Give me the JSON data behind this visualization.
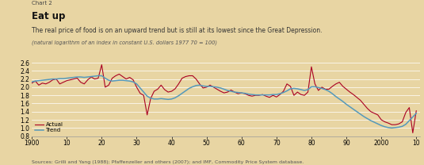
{
  "chart_label": "Chart 2",
  "title": "Eat up",
  "subtitle": "The real price of food is on an upward trend but is still at its lowest since the Great Depression.",
  "note": "(natural logarithm of an index in constant U.S. dollars 1977 70 = 100)",
  "source": "Sources: Grilli and Yang (1988); Pfaffenzeller and others (2007); and IMF, Commodity Price System database.",
  "background_color": "#e8d5a3",
  "actual_color": "#aa0022",
  "trend_color": "#5599bb",
  "ylim": [
    0.8,
    2.6
  ],
  "yticks": [
    0.8,
    1.0,
    1.2,
    1.4,
    1.6,
    1.8,
    2.0,
    2.2,
    2.4,
    2.6
  ],
  "xticks": [
    1900,
    1910,
    1920,
    1930,
    1940,
    1950,
    1960,
    1970,
    1980,
    1990,
    2000,
    2010
  ],
  "xticklabels": [
    "1900",
    "10",
    "20",
    "30",
    "40",
    "50",
    "60",
    "70",
    "80",
    "90",
    "2000",
    "10"
  ],
  "actual_x": [
    1900,
    1901,
    1902,
    1903,
    1904,
    1905,
    1906,
    1907,
    1908,
    1909,
    1910,
    1911,
    1912,
    1913,
    1914,
    1915,
    1916,
    1917,
    1918,
    1919,
    1920,
    1921,
    1922,
    1923,
    1924,
    1925,
    1926,
    1927,
    1928,
    1929,
    1930,
    1931,
    1932,
    1933,
    1934,
    1935,
    1936,
    1937,
    1938,
    1939,
    1940,
    1941,
    1942,
    1943,
    1944,
    1945,
    1946,
    1947,
    1948,
    1949,
    1950,
    1951,
    1952,
    1953,
    1954,
    1955,
    1956,
    1957,
    1958,
    1959,
    1960,
    1961,
    1962,
    1963,
    1964,
    1965,
    1966,
    1967,
    1968,
    1969,
    1970,
    1971,
    1972,
    1973,
    1974,
    1975,
    1976,
    1977,
    1978,
    1979,
    1980,
    1981,
    1982,
    1983,
    1984,
    1985,
    1986,
    1987,
    1988,
    1989,
    1990,
    1991,
    1992,
    1993,
    1994,
    1995,
    1996,
    1997,
    1998,
    1999,
    2000,
    2001,
    2002,
    2003,
    2004,
    2005,
    2006,
    2007,
    2008,
    2009,
    2010
  ],
  "actual_y": [
    2.1,
    2.15,
    2.05,
    2.1,
    2.08,
    2.12,
    2.18,
    2.2,
    2.08,
    2.12,
    2.16,
    2.18,
    2.2,
    2.22,
    2.12,
    2.08,
    2.18,
    2.25,
    2.2,
    2.22,
    2.55,
    2.0,
    2.05,
    2.22,
    2.28,
    2.32,
    2.26,
    2.2,
    2.24,
    2.18,
    2.0,
    1.85,
    1.8,
    1.32,
    1.72,
    1.9,
    1.95,
    2.05,
    1.94,
    1.88,
    1.9,
    1.96,
    2.08,
    2.22,
    2.26,
    2.28,
    2.28,
    2.2,
    2.08,
    1.98,
    2.0,
    2.05,
    2.0,
    1.95,
    1.9,
    1.86,
    1.88,
    1.93,
    1.88,
    1.84,
    1.86,
    1.84,
    1.8,
    1.78,
    1.8,
    1.8,
    1.82,
    1.78,
    1.75,
    1.8,
    1.76,
    1.82,
    1.9,
    2.08,
    2.02,
    1.8,
    1.88,
    1.82,
    1.8,
    1.88,
    2.5,
    2.08,
    1.92,
    2.0,
    1.95,
    1.95,
    2.02,
    2.08,
    2.12,
    2.02,
    1.95,
    1.88,
    1.82,
    1.75,
    1.68,
    1.58,
    1.48,
    1.4,
    1.36,
    1.32,
    1.2,
    1.15,
    1.12,
    1.08,
    1.08,
    1.1,
    1.15,
    1.38,
    1.5,
    0.88,
    1.42
  ],
  "trend_y": [
    2.13,
    2.15,
    2.16,
    2.17,
    2.18,
    2.19,
    2.2,
    2.2,
    2.21,
    2.21,
    2.22,
    2.23,
    2.24,
    2.25,
    2.25,
    2.24,
    2.25,
    2.26,
    2.27,
    2.28,
    2.28,
    2.22,
    2.17,
    2.15,
    2.16,
    2.17,
    2.17,
    2.16,
    2.15,
    2.13,
    2.08,
    1.98,
    1.88,
    1.78,
    1.73,
    1.71,
    1.71,
    1.72,
    1.71,
    1.7,
    1.71,
    1.74,
    1.79,
    1.85,
    1.91,
    1.97,
    2.01,
    2.04,
    2.05,
    2.03,
    2.02,
    2.02,
    2.01,
    2.0,
    1.98,
    1.95,
    1.92,
    1.9,
    1.88,
    1.87,
    1.86,
    1.85,
    1.83,
    1.82,
    1.81,
    1.81,
    1.81,
    1.81,
    1.81,
    1.82,
    1.82,
    1.84,
    1.87,
    1.91,
    1.96,
    1.97,
    1.96,
    1.94,
    1.92,
    1.94,
    2.01,
    2.01,
    1.99,
    1.97,
    1.94,
    1.9,
    1.84,
    1.77,
    1.71,
    1.65,
    1.58,
    1.52,
    1.46,
    1.4,
    1.34,
    1.28,
    1.23,
    1.18,
    1.14,
    1.1,
    1.06,
    1.03,
    1.01,
    1.0,
    1.01,
    1.02,
    1.04,
    1.09,
    1.18,
    1.27,
    1.36
  ]
}
